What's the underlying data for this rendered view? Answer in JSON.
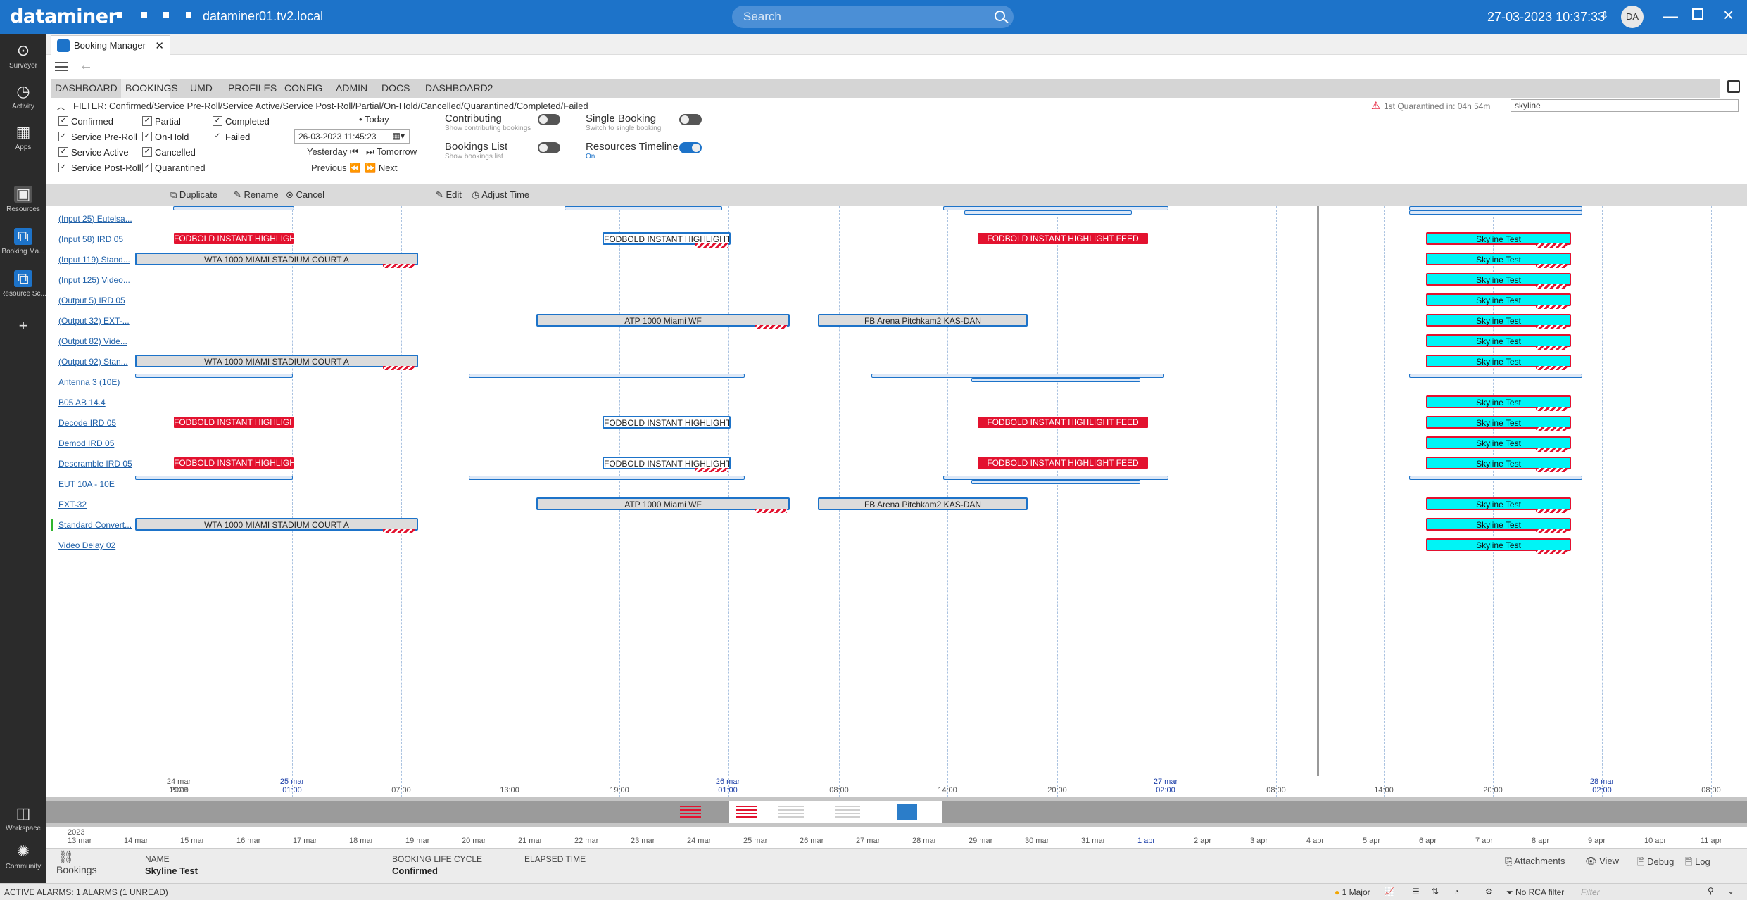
{
  "topbar": {
    "brand": "dataminer",
    "host": "dataminer01.tv2.local",
    "search_placeholder": "Search",
    "datetime": "27-03-2023 10:37:33",
    "avatar": "DA"
  },
  "sidebar": {
    "items": [
      {
        "label": "Surveyor",
        "icon": "surveyor-icon"
      },
      {
        "label": "Activity",
        "icon": "activity-icon"
      },
      {
        "label": "Apps",
        "icon": "apps-icon"
      },
      {
        "label": "Resources",
        "icon": "resources-icon"
      },
      {
        "label": "Booking Ma...",
        "icon": "booking-icon"
      },
      {
        "label": "Resource Sc...",
        "icon": "resource-scheduler-icon"
      },
      {
        "label": "Workspace",
        "icon": "workspace-icon"
      },
      {
        "label": "Community",
        "icon": "community-icon"
      }
    ]
  },
  "app_tab": {
    "label": "Booking Manager"
  },
  "tabs": [
    "DASHBOARD",
    "BOOKINGS",
    "UMD",
    "PROFILES",
    "CONFIG",
    "ADMIN",
    "DOCS",
    "DASHBOARD2"
  ],
  "filter": {
    "text": "FILTER: Confirmed/Service Pre-Roll/Service Active/Service Post-Roll/Partial/On-Hold/Cancelled/Quarantined/Completed/Failed",
    "quarantine_info": "1st Quarantined in: 04h 54m",
    "search_value": "skyline",
    "states": [
      "Confirmed",
      "Service Pre-Roll",
      "Service Active",
      "Service Post-Roll",
      "Partial",
      "On-Hold",
      "Cancelled",
      "Quarantined",
      "Completed",
      "Failed"
    ]
  },
  "timenav": {
    "today": "Today",
    "date_value": "26-03-2023 11:45:23",
    "yesterday": "Yesterday",
    "tomorrow": "Tomorrow",
    "previous": "Previous",
    "next": "Next"
  },
  "toggles": [
    {
      "label": "Contributing",
      "sub": "Show contributing bookings",
      "on": false
    },
    {
      "label": "Single Booking",
      "sub": "Switch to single booking",
      "on": false
    },
    {
      "label": "Bookings List",
      "sub": "Show bookings list",
      "on": false
    },
    {
      "label": "Resources Timeline",
      "sub": "On",
      "on": true
    }
  ],
  "actions": {
    "duplicate": "Duplicate",
    "rename": "Rename",
    "cancel": "Cancel",
    "edit": "Edit",
    "adjust_time": "Adjust Time"
  },
  "resources": [
    "(Input 25) Eutelsa...",
    "(Input 58) IRD 05",
    "(Input 119) Stand...",
    "(Input 125) Video...",
    "(Output 5) IRD 05",
    "(Output 32) EXT-...",
    "(Output 82) Vide...",
    "(Output 92) Stan...",
    "Antenna 3 (10E)",
    "B05 AB 14.4",
    "Decode IRD 05",
    "Demod IRD 05",
    "Descramble IRD 05",
    "EUT 10A - 10E",
    "EXT-32",
    "Standard Convert...",
    "Video Delay 02"
  ],
  "bookings": {
    "fodbold_short": "FODBOLD INSTANT HIGHLIGH...",
    "fodbold_mid": "FODBOLD INSTANT HIGHLIGHT...",
    "fodbold_full": "FODBOLD INSTANT HIGHLIGHT FEED",
    "wta": "WTA 1000 MIAMI STADIUM COURT A",
    "atp": "ATP 1000 Miami WF",
    "fb_arena": "FB Arena Pitchkam2 KAS-DAN",
    "skyline": "Skyline Test"
  },
  "time_axis": [
    {
      "top": "24 mar 2023",
      "bottom": "19:00",
      "blue": false
    },
    {
      "top": "25 mar",
      "bottom": "01:00",
      "blue": true
    },
    {
      "top": "",
      "bottom": "07:00",
      "blue": false
    },
    {
      "top": "",
      "bottom": "13:00",
      "blue": false
    },
    {
      "top": "",
      "bottom": "19:00",
      "blue": false
    },
    {
      "top": "26 mar",
      "bottom": "01:00",
      "blue": true
    },
    {
      "top": "",
      "bottom": "08:00",
      "blue": false
    },
    {
      "top": "",
      "bottom": "14:00",
      "blue": false
    },
    {
      "top": "",
      "bottom": "20:00",
      "blue": false
    },
    {
      "top": "27 mar",
      "bottom": "02:00",
      "blue": true
    },
    {
      "top": "",
      "bottom": "08:00",
      "blue": false
    },
    {
      "top": "",
      "bottom": "14:00",
      "blue": false
    },
    {
      "top": "",
      "bottom": "20:00",
      "blue": false
    },
    {
      "top": "28 mar",
      "bottom": "02:00",
      "blue": true
    },
    {
      "top": "",
      "bottom": "08:00",
      "blue": false
    }
  ],
  "overview_scale": {
    "year": "2023",
    "days": [
      "13 mar",
      "14 mar",
      "15 mar",
      "16 mar",
      "17 mar",
      "18 mar",
      "19 mar",
      "20 mar",
      "21 mar",
      "22 mar",
      "23 mar",
      "24 mar",
      "25 mar",
      "26 mar",
      "27 mar",
      "28 mar",
      "29 mar",
      "30 mar",
      "31 mar",
      "1 apr",
      "2 apr",
      "3 apr",
      "4 apr",
      "5 apr",
      "6 apr",
      "7 apr",
      "8 apr",
      "9 apr",
      "10 apr",
      "11 apr"
    ]
  },
  "details": {
    "section": "Bookings",
    "name_label": "NAME",
    "name_value": "Skyline Test",
    "lifecycle_label": "BOOKING LIFE CYCLE",
    "lifecycle_value": "Confirmed",
    "elapsed_label": "ELAPSED TIME",
    "attachments": "Attachments",
    "view": "View",
    "debug": "Debug",
    "log": "Log"
  },
  "statusbar": {
    "alarms": "ACTIVE ALARMS: 1 ALARMS (1 UNREAD)",
    "major": "1 Major",
    "rca": "No RCA filter",
    "filter_placeholder": "Filter"
  },
  "colors": {
    "brand": "#1d73c9",
    "booking_red": "#e3122f",
    "booking_cyan": "#00f4f6"
  }
}
